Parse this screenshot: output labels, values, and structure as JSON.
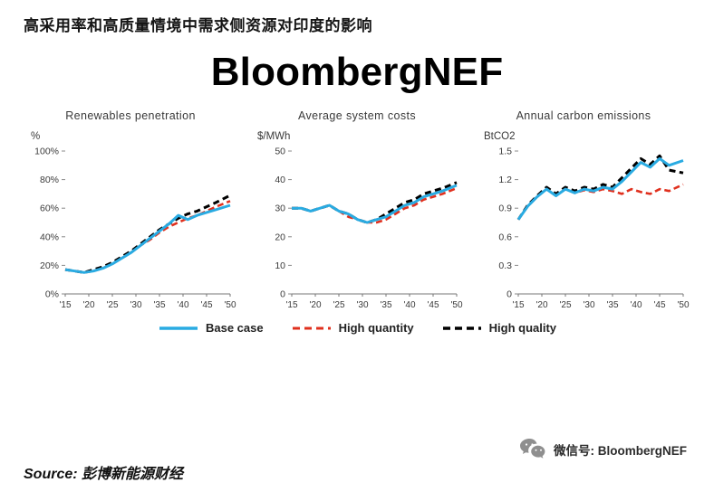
{
  "header": {
    "title_zh": "高采用率和高质量情境中需求侧资源对印度的影响",
    "brand": "BloombergNEF"
  },
  "chart_data": [
    {
      "type": "line",
      "title": "Renewables penetration",
      "unit": "%",
      "ylim": [
        0,
        100
      ],
      "yticks": [
        "0%",
        "20%",
        "40%",
        "60%",
        "80%",
        "100%"
      ],
      "xlim": [
        15,
        50
      ],
      "xtick_values": [
        15,
        20,
        25,
        30,
        35,
        40,
        45,
        50
      ],
      "xtick_labels": [
        "'15",
        "'20",
        "'25",
        "'30",
        "'35",
        "'40",
        "'45",
        "'50"
      ],
      "x": [
        15,
        17,
        19,
        21,
        23,
        25,
        27,
        29,
        31,
        33,
        35,
        37,
        39,
        41,
        43,
        45,
        47,
        50
      ],
      "series": [
        {
          "name": "Base case",
          "color": "#29abe2",
          "width": 3,
          "dash": "",
          "values": [
            17,
            16,
            15,
            16,
            18,
            21,
            25,
            29,
            34,
            39,
            44,
            49,
            55,
            52,
            55,
            57,
            59,
            62
          ]
        },
        {
          "name": "High quantity",
          "color": "#e0301e",
          "width": 2.6,
          "dash": "7 4",
          "values": [
            17,
            16,
            15,
            16,
            18,
            21,
            25,
            29,
            34,
            38,
            43,
            47,
            50,
            53,
            55,
            58,
            61,
            65
          ]
        },
        {
          "name": "High quality",
          "color": "#000000",
          "width": 3,
          "dash": "7 4.5",
          "values": [
            17,
            16,
            15,
            17,
            19,
            22,
            26,
            30,
            35,
            40,
            45,
            49,
            53,
            56,
            58,
            61,
            64,
            69
          ]
        }
      ]
    },
    {
      "type": "line",
      "title": "Average system costs",
      "unit": "$/MWh",
      "ylim": [
        0,
        50
      ],
      "yticks": [
        "0",
        "10",
        "20",
        "30",
        "40",
        "50"
      ],
      "xlim": [
        15,
        50
      ],
      "xtick_values": [
        15,
        20,
        25,
        30,
        35,
        40,
        45,
        50
      ],
      "xtick_labels": [
        "'15",
        "'20",
        "'25",
        "'30",
        "'35",
        "'40",
        "'45",
        "'50"
      ],
      "x": [
        15,
        17,
        19,
        21,
        23,
        25,
        27,
        29,
        31,
        33,
        35,
        37,
        39,
        41,
        43,
        45,
        47,
        50
      ],
      "series": [
        {
          "name": "Base case",
          "color": "#29abe2",
          "width": 3,
          "dash": "",
          "values": [
            30,
            30,
            29,
            30,
            31,
            29,
            28,
            26,
            25,
            26,
            27,
            29,
            31,
            32,
            34,
            35,
            36,
            38
          ]
        },
        {
          "name": "High quantity",
          "color": "#e0301e",
          "width": 2.6,
          "dash": "7 4",
          "values": [
            30,
            30,
            29,
            30,
            31,
            29,
            27,
            26,
            25,
            25,
            26,
            28,
            30,
            31,
            33,
            34,
            35,
            37
          ]
        },
        {
          "name": "High quality",
          "color": "#000000",
          "width": 3,
          "dash": "7 4.5",
          "values": [
            30,
            30,
            29,
            30,
            31,
            29,
            28,
            26,
            25,
            26,
            28,
            30,
            32,
            33,
            35,
            36,
            37,
            39
          ]
        }
      ]
    },
    {
      "type": "line",
      "title": "Annual carbon emissions",
      "unit": "BtCO2",
      "ylim": [
        0,
        1.5
      ],
      "yticks": [
        "0",
        "0.3",
        "0.6",
        "0.9",
        "1.2",
        "1.5"
      ],
      "xlim": [
        15,
        50
      ],
      "xtick_values": [
        15,
        20,
        25,
        30,
        35,
        40,
        45,
        50
      ],
      "xtick_labels": [
        "'15",
        "'20",
        "'25",
        "'30",
        "'35",
        "'40",
        "'45",
        "'50"
      ],
      "x": [
        15,
        17,
        19,
        21,
        23,
        25,
        27,
        29,
        31,
        33,
        35,
        37,
        39,
        41,
        43,
        45,
        47,
        50
      ],
      "series": [
        {
          "name": "Base case",
          "color": "#29abe2",
          "width": 3,
          "dash": "",
          "values": [
            0.78,
            0.92,
            1.02,
            1.1,
            1.03,
            1.1,
            1.06,
            1.1,
            1.08,
            1.12,
            1.1,
            1.18,
            1.28,
            1.38,
            1.33,
            1.42,
            1.35,
            1.4
          ]
        },
        {
          "name": "High quantity",
          "color": "#e0301e",
          "width": 2.6,
          "dash": "7 4",
          "values": [
            0.78,
            0.92,
            1.02,
            1.1,
            1.03,
            1.1,
            1.06,
            1.09,
            1.07,
            1.1,
            1.08,
            1.05,
            1.1,
            1.07,
            1.05,
            1.1,
            1.08,
            1.15
          ]
        },
        {
          "name": "High quality",
          "color": "#000000",
          "width": 3,
          "dash": "7 4.5",
          "values": [
            0.78,
            0.93,
            1.03,
            1.12,
            1.05,
            1.12,
            1.08,
            1.12,
            1.1,
            1.15,
            1.12,
            1.22,
            1.32,
            1.42,
            1.36,
            1.45,
            1.3,
            1.27
          ]
        }
      ]
    }
  ],
  "legend": [
    {
      "key": "base-case",
      "label": "Base case",
      "color": "#29abe2",
      "width": 3.4,
      "dash": ""
    },
    {
      "key": "high-quantity",
      "label": "High quantity",
      "color": "#e0301e",
      "width": 3,
      "dash": "8 5"
    },
    {
      "key": "high-quality",
      "label": "High quality",
      "color": "#000000",
      "width": 3.4,
      "dash": "8 5"
    }
  ],
  "footer": {
    "source": "Source: 彭博新能源财经",
    "wechat": "微信号: BloombergNEF"
  },
  "colors": {
    "base_case": "#29abe2",
    "high_quantity": "#e0301e",
    "high_quality": "#000000",
    "axis_text": "#3a3a3a"
  }
}
